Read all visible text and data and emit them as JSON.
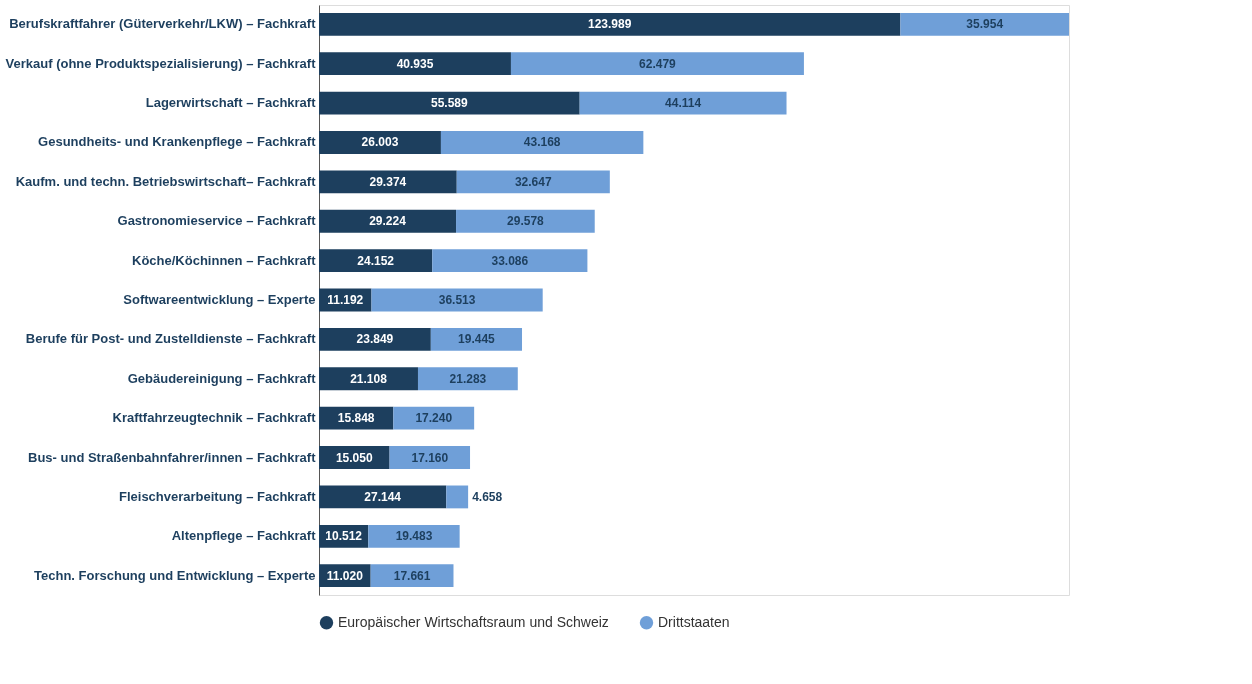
{
  "chart_data": {
    "type": "bar",
    "orientation": "horizontal",
    "stacked": true,
    "tick_labels": "y",
    "grid": false,
    "legend": "bottom left",
    "categories": [
      "Berufskraftfahrer (Güterverkehr/LKW) – Fachkraft",
      "Verkauf (ohne Produktspezialisierung) – Fachkraft",
      "Lagerwirtschaft – Fachkraft",
      "Gesundheits- und Krankenpflege – Fachkraft",
      "Kaufm. und techn. Betriebswirtschaft– Fachkraft",
      "Gastronomieservice – Fachkraft",
      "Köche/Köchinnen – Fachkraft",
      "Softwareentwicklung – Experte",
      "Berufe für Post- und Zustelldienste – Fachkraft",
      "Gebäudereinigung – Fachkraft",
      "Kraftfahrzeugtechnik – Fachkraft",
      "Bus- und Straßenbahnfahrer/innen – Fachkraft",
      "Fleischverarbeitung – Fachkraft",
      "Altenpflege – Fachkraft",
      "Techn. Forschung und Entwicklung – Experte"
    ],
    "series": [
      {
        "name": "Europäischer Wirtschaftsraum und Schweiz",
        "color": "#1d3f5e",
        "values": [
          123989,
          40935,
          55589,
          26003,
          29374,
          29224,
          24152,
          11192,
          23849,
          21108,
          15848,
          15050,
          27144,
          10512,
          11020
        ],
        "value_labels": [
          "123.989",
          "40.935",
          "55.589",
          "26.003",
          "29.374",
          "29.224",
          "24.152",
          "11.192",
          "23.849",
          "21.108",
          "15.848",
          "15.050",
          "27.144",
          "10.512",
          "11.020"
        ]
      },
      {
        "name": "Drittstaaten",
        "color": "#6f9fd8",
        "values": [
          35954,
          62479,
          44114,
          43168,
          32647,
          29578,
          33086,
          36513,
          19445,
          21283,
          17240,
          17160,
          4658,
          19483,
          17661
        ],
        "value_labels": [
          "35.954",
          "62.479",
          "44.114",
          "43.168",
          "32.647",
          "29.578",
          "33.086",
          "36.513",
          "19.445",
          "21.283",
          "17.240",
          "17.160",
          "4.658",
          "19.483",
          "17.661"
        ]
      }
    ]
  }
}
